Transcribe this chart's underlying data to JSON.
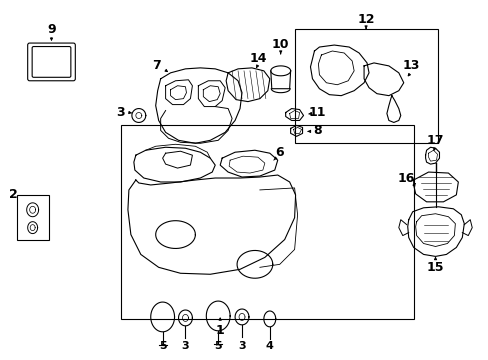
{
  "bg_color": "#ffffff",
  "line_color": "#000000",
  "figure_width": 4.89,
  "figure_height": 3.6,
  "dpi": 100
}
